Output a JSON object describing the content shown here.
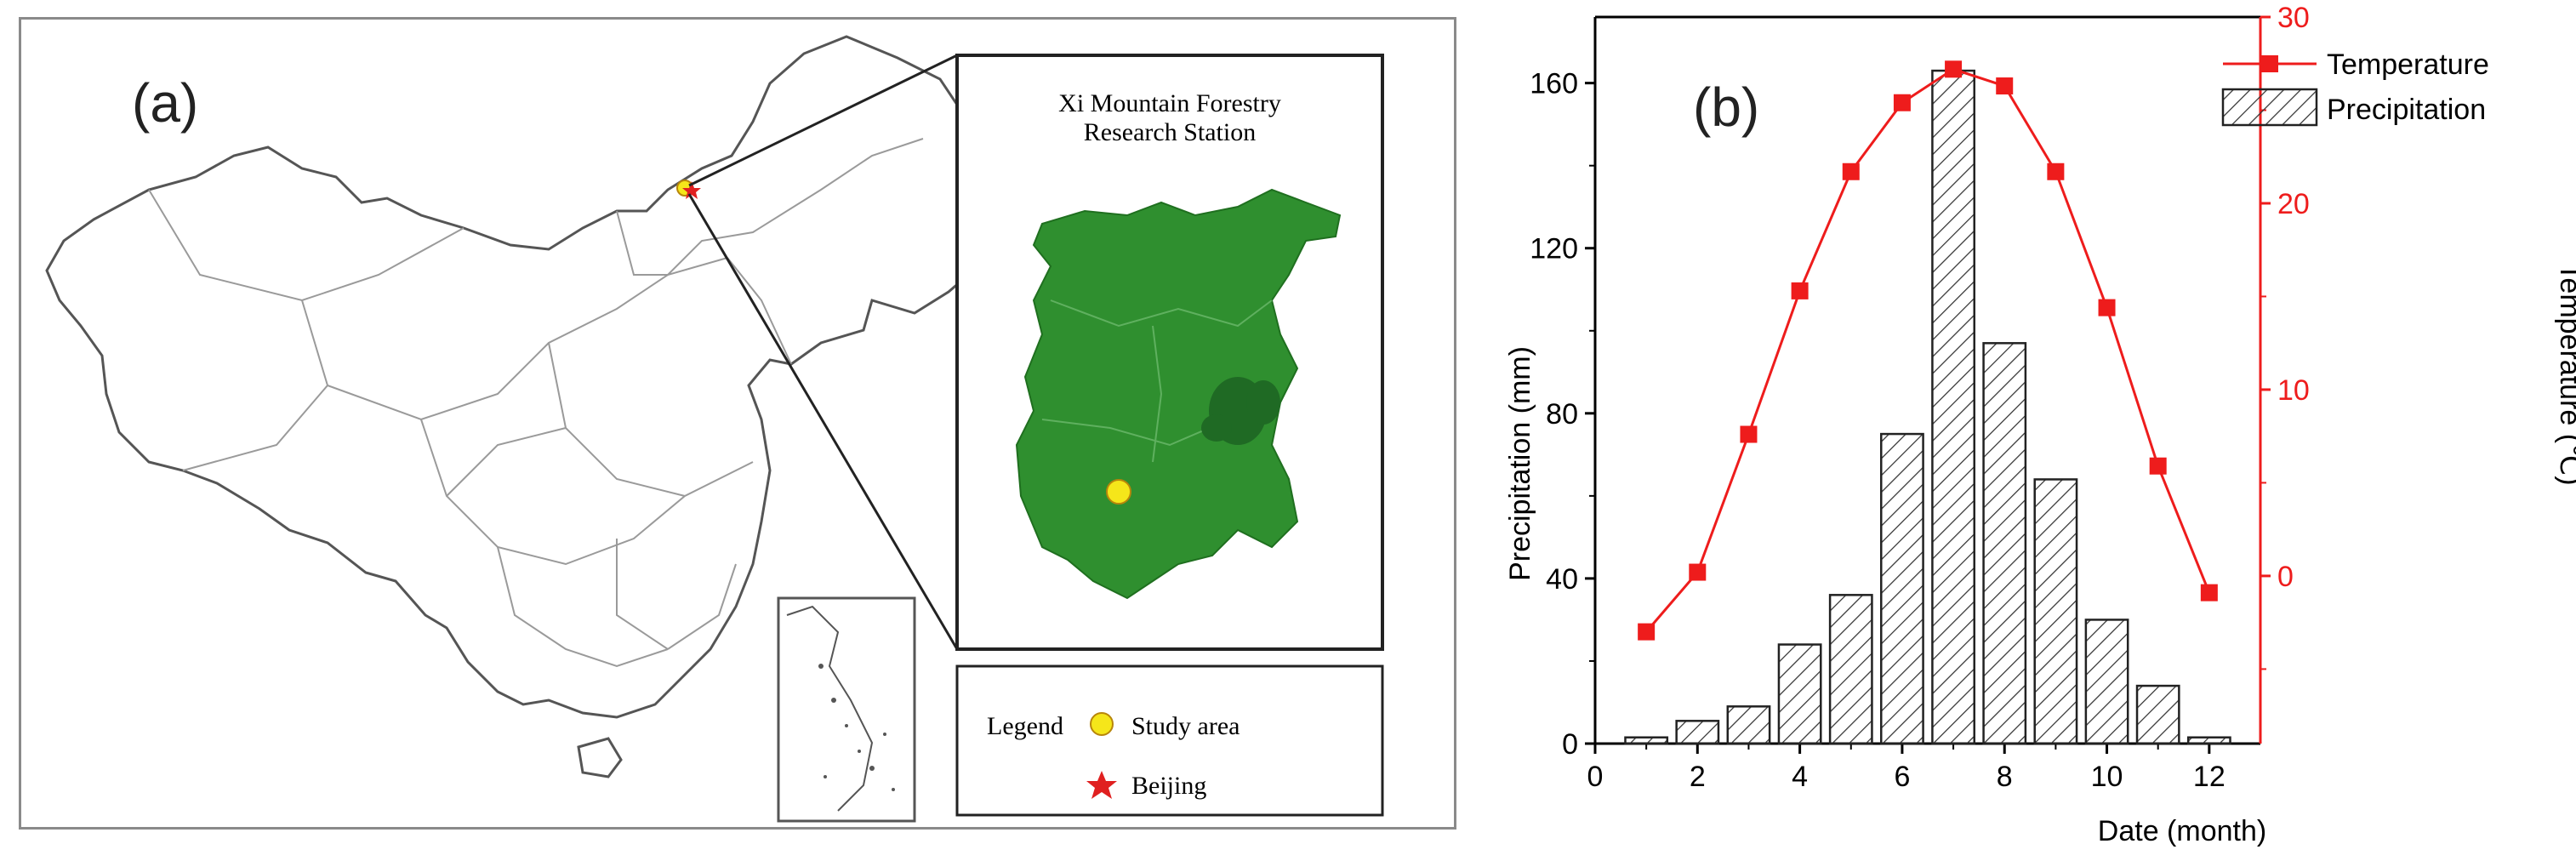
{
  "panel_a": {
    "label": "(a)",
    "inset_title_line1": "Xi Mountain Forestry",
    "inset_title_line2": "Research Station",
    "legend": {
      "title": "Legend",
      "items": [
        {
          "label": "Study area",
          "symbol": "yellow-circle"
        },
        {
          "label": "Beijing",
          "symbol": "red-star"
        }
      ]
    },
    "colors": {
      "forest": "#2f8f2f",
      "study_area": "#f5e61a",
      "beijing": "#e02020",
      "border": "#8a8a8a"
    }
  },
  "panel_b": {
    "label": "(b)"
  },
  "chart_data": {
    "type": "bar",
    "xlabel": "Date (month)",
    "ylabel_left": "Precipitation (mm)",
    "ylabel_right": "Temperature (℃)",
    "x": [
      1,
      2,
      3,
      4,
      5,
      6,
      7,
      8,
      9,
      10,
      11,
      12
    ],
    "xlim": [
      0,
      13
    ],
    "xticks": [
      0,
      2,
      4,
      6,
      8,
      10,
      12
    ],
    "ylim_left": [
      0,
      176
    ],
    "yticks_left": [
      0,
      40,
      80,
      120,
      160
    ],
    "ylim_right": [
      -9,
      30
    ],
    "yticks_right": [
      0,
      10,
      20,
      30
    ],
    "series": [
      {
        "name": "Precipitation",
        "kind": "bar",
        "axis": "left",
        "pattern": "hatched",
        "values": [
          1.5,
          5.5,
          9,
          24,
          36,
          75,
          163,
          97,
          64,
          30,
          14,
          1.5
        ]
      },
      {
        "name": "Temperature",
        "kind": "line",
        "axis": "right",
        "color": "#ee1c1c",
        "marker": "square",
        "values": [
          -3,
          0.2,
          7.6,
          15.3,
          21.7,
          25.4,
          27.2,
          26.3,
          21.7,
          14.4,
          5.9,
          -0.9
        ]
      }
    ],
    "legend_position": "top-right",
    "grid": false
  }
}
